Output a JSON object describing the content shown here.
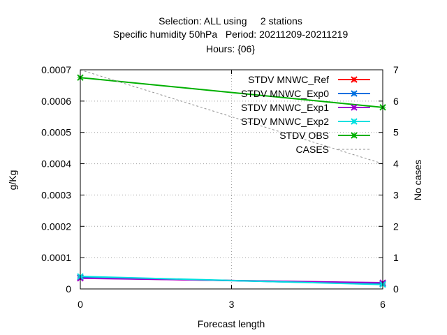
{
  "chart_data": {
    "type": "line",
    "title_lines": [
      "Selection: ALL using     2 stations",
      "Specific humidity 50hPa   Period: 20211209-20211219",
      "Hours: {06}"
    ],
    "xlabel": "Forecast length",
    "ylabel": "g/Kg",
    "y2label": "No cases",
    "xlim": [
      0,
      6
    ],
    "ylim": [
      0,
      0.0007
    ],
    "y2lim": [
      0,
      7
    ],
    "xticks": [
      "0",
      "3",
      "6"
    ],
    "yticks": [
      "0",
      "0.0001",
      "0.0002",
      "0.0003",
      "0.0004",
      "0.0005",
      "0.0006",
      "0.0007"
    ],
    "y2ticks": [
      "0",
      "1",
      "2",
      "3",
      "4",
      "5",
      "6",
      "7"
    ],
    "grid": true,
    "legend_position": "top-right",
    "series": [
      {
        "name": "STDV MNWC_Ref",
        "color": "#ff0000",
        "axis": "y",
        "x": [
          0,
          6
        ],
        "values": [
          3.5e-05,
          1.9e-05
        ]
      },
      {
        "name": "STDV MNWC_Exp0",
        "color": "#0070e0",
        "axis": "y",
        "x": [
          0,
          6
        ],
        "values": [
          3.7e-05,
          1.6e-05
        ]
      },
      {
        "name": "STDV MNWC_Exp1",
        "color": "#a000d0",
        "axis": "y",
        "x": [
          0,
          6
        ],
        "values": [
          3.4e-05,
          2e-05
        ]
      },
      {
        "name": "STDV MNWC_Exp2",
        "color": "#00e0e0",
        "axis": "y",
        "x": [
          0,
          6
        ],
        "values": [
          4e-05,
          1.4e-05
        ]
      },
      {
        "name": "STDV OBS",
        "color": "#00b000",
        "axis": "y",
        "x": [
          0,
          6
        ],
        "values": [
          0.000675,
          0.00058
        ]
      },
      {
        "name": "CASES",
        "color": "#909090",
        "axis": "y2",
        "dashed": true,
        "x": [
          0,
          6
        ],
        "values": [
          7,
          4
        ]
      }
    ]
  }
}
